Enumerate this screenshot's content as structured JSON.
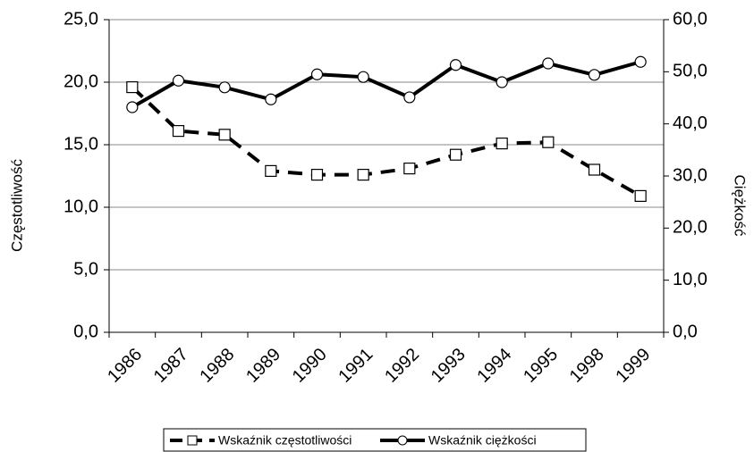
{
  "chart_data": {
    "type": "line",
    "categories": [
      "1986",
      "1987",
      "1988",
      "1989",
      "1990",
      "1991",
      "1992",
      "1993",
      "1994",
      "1995",
      "1998",
      "1999"
    ],
    "series": [
      {
        "name": "Wskaźnik częstotliwości",
        "color": "#000000",
        "line_style": "dashed",
        "marker": "square",
        "values": [
          19.6,
          16.1,
          15.8,
          12.9,
          12.6,
          12.6,
          13.1,
          14.2,
          15.1,
          15.2,
          13.0,
          10.9
        ]
      },
      {
        "name": "Wskaźnik ciężkości",
        "color": "#000000",
        "line_style": "solid",
        "marker": "circle",
        "axis": "y2",
        "values": [
          43.2,
          48.3,
          47.0,
          44.7,
          49.5,
          49.0,
          45.1,
          51.3,
          48.0,
          51.6,
          49.4,
          51.9
        ]
      }
    ],
    "ylabel": "Częstotliwość",
    "y2label": "Ciężkość",
    "ylim": [
      0,
      25
    ],
    "yticks": [
      {
        "value": 0,
        "label": "0,0"
      },
      {
        "value": 5,
        "label": "5,0"
      },
      {
        "value": 10,
        "label": "10,0"
      },
      {
        "value": 15,
        "label": "15,0"
      },
      {
        "value": 20,
        "label": "20,0"
      },
      {
        "value": 25,
        "label": "25,0"
      }
    ],
    "y2lim": [
      0,
      60
    ],
    "y2ticks": [
      {
        "value": 0,
        "label": "0,0"
      },
      {
        "value": 10,
        "label": "10,0"
      },
      {
        "value": 20,
        "label": "20,0"
      },
      {
        "value": 30,
        "label": "30,0"
      },
      {
        "value": 40,
        "label": "40,0"
      },
      {
        "value": 50,
        "label": "50,0"
      },
      {
        "value": 60,
        "label": "60,0"
      }
    ],
    "grid": true,
    "legend": "bottom"
  }
}
